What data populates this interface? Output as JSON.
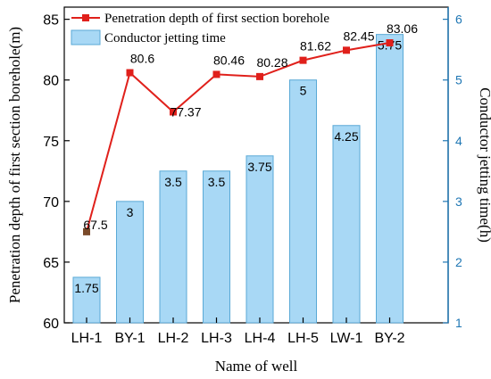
{
  "chart_data": {
    "type": "bar",
    "categories": [
      "LH-1",
      "BY-1",
      "LH-2",
      "LH-3",
      "LH-4",
      "LH-5",
      "LW-1",
      "BY-2"
    ],
    "series": [
      {
        "name": "Penetration depth of first section borehole",
        "type": "line",
        "axis": "left",
        "color": "#e0201b",
        "values": [
          67.5,
          80.6,
          77.37,
          80.46,
          80.28,
          81.62,
          82.45,
          83.06
        ],
        "labels": [
          "67.5",
          "80.6",
          "77.37",
          "80.46",
          "80.28",
          "81.62",
          "82.45",
          "83.06"
        ]
      },
      {
        "name": "Conductor jetting time",
        "type": "bar",
        "axis": "right",
        "color": "#a8d8f5",
        "values": [
          1.75,
          3,
          3.5,
          3.5,
          3.75,
          5,
          4.25,
          5.75
        ],
        "labels": [
          "1.75",
          "3",
          "3.5",
          "3.5",
          "3.75",
          "5",
          "4.25",
          "5.75"
        ]
      }
    ],
    "xlabel": "Name of well",
    "ylabel": "Penetration depth of first section borehole(m)",
    "y2label": "Conductor jetting time(h)",
    "ylim": [
      60,
      86
    ],
    "y2lim": [
      1,
      6.2
    ],
    "yticks": [
      "60",
      "65",
      "70",
      "75",
      "80",
      "85"
    ],
    "y2ticks": [
      "1",
      "2",
      "3",
      "4",
      "5",
      "6"
    ],
    "legend": "top-left",
    "grid": false,
    "right_axis_color": "#1f77b4"
  }
}
